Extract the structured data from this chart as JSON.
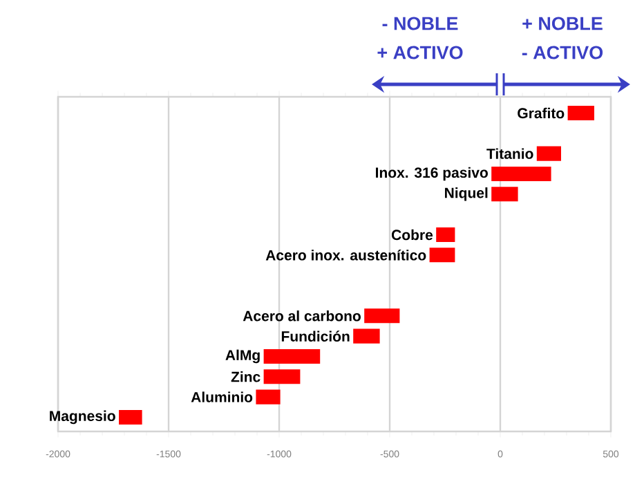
{
  "chart_data": {
    "type": "bar",
    "orientation": "horizontal",
    "color": "#ff0000",
    "categories": [
      "Grafito",
      null,
      "Titanio",
      "Inox. 316 pasivo",
      "Niquel",
      null,
      "Cobre",
      "Acero inox. austenítico",
      null,
      null,
      "Acero al carbono",
      "Fundición",
      "AlMg",
      "Zinc",
      "Aluminio",
      "Magnesio"
    ],
    "base": [
      305,
      null,
      165,
      -40,
      -40,
      null,
      -290,
      -320,
      null,
      null,
      -615,
      -665,
      -1070,
      -1070,
      -1105,
      -1725
    ],
    "values": [
      120,
      null,
      110,
      270,
      120,
      null,
      85,
      115,
      null,
      null,
      160,
      120,
      255,
      165,
      110,
      105
    ],
    "xlim": [
      -2000,
      500
    ],
    "xticks": [
      -2000,
      -1500,
      -1000,
      -500,
      0,
      500
    ],
    "grid": "x",
    "annotations": [
      "- NOBLE",
      "+ ACTIVO",
      "+ NOBLE",
      "- ACTIVO"
    ]
  }
}
